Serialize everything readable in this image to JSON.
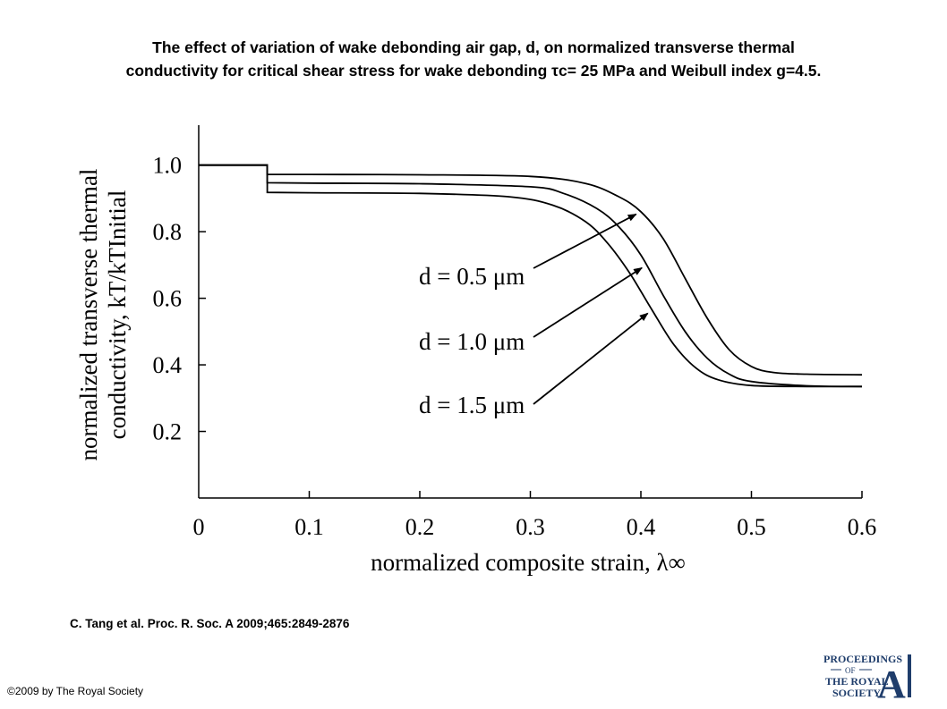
{
  "header": {
    "title_line1": "The effect of variation of wake debonding air gap, d, on normalized transverse thermal",
    "title_line2": "conductivity for critical shear stress for wake debonding τc= 25 MPa and Weibull index g=4.5."
  },
  "chart_data": {
    "type": "line",
    "xlabel": "normalized composite strain, λ∞",
    "ylabel_line1": "normalized transverse thermal",
    "ylabel_line2": "conductivity, kT/kTInitial",
    "xlim": [
      0,
      0.6
    ],
    "ylim": [
      0.0,
      1.12
    ],
    "xticks": [
      "0",
      "0.1",
      "0.2",
      "0.3",
      "0.4",
      "0.5",
      "0.6"
    ],
    "yticks": [
      "0.2",
      "0.4",
      "0.6",
      "0.8",
      "1.0"
    ],
    "grid": false,
    "series": [
      {
        "name": "d=0.5 μm",
        "x": [
          0,
          0.062,
          0.062,
          0.1,
          0.2,
          0.3,
          0.35,
          0.38,
          0.4,
          0.42,
          0.44,
          0.46,
          0.48,
          0.5,
          0.52,
          0.55,
          0.6
        ],
        "y": [
          1.0,
          1.0,
          0.972,
          0.972,
          0.971,
          0.966,
          0.945,
          0.905,
          0.86,
          0.78,
          0.66,
          0.54,
          0.445,
          0.395,
          0.377,
          0.372,
          0.37
        ]
      },
      {
        "name": "d=1.0 μm",
        "x": [
          0,
          0.062,
          0.062,
          0.1,
          0.2,
          0.3,
          0.33,
          0.36,
          0.38,
          0.4,
          0.42,
          0.44,
          0.46,
          0.48,
          0.5,
          0.55,
          0.6
        ],
        "y": [
          1.0,
          1.0,
          0.947,
          0.946,
          0.944,
          0.935,
          0.915,
          0.87,
          0.815,
          0.73,
          0.61,
          0.5,
          0.42,
          0.372,
          0.35,
          0.337,
          0.335
        ]
      },
      {
        "name": "d=1.5 μm",
        "x": [
          0,
          0.062,
          0.062,
          0.1,
          0.2,
          0.28,
          0.32,
          0.35,
          0.37,
          0.39,
          0.41,
          0.43,
          0.45,
          0.47,
          0.5,
          0.55,
          0.6
        ],
        "y": [
          1.0,
          1.0,
          0.918,
          0.917,
          0.915,
          0.905,
          0.88,
          0.83,
          0.765,
          0.675,
          0.565,
          0.46,
          0.39,
          0.355,
          0.338,
          0.335,
          0.335
        ]
      }
    ],
    "annotations": [
      {
        "text": "d = 0.5 μm",
        "series": 0
      },
      {
        "text": "d = 1.0 μm",
        "series": 1
      },
      {
        "text": "d = 1.5 μm",
        "series": 2
      }
    ]
  },
  "footer": {
    "citation": "C. Tang et al. Proc. R. Soc. A 2009;465:2849-2876",
    "copyright": "©2009 by The Royal Society"
  },
  "logo": {
    "line1": "PROCEEDINGS",
    "line2": "OF",
    "line3": "THE ROYAL",
    "line4": "SOCIETY",
    "letter": "A"
  }
}
